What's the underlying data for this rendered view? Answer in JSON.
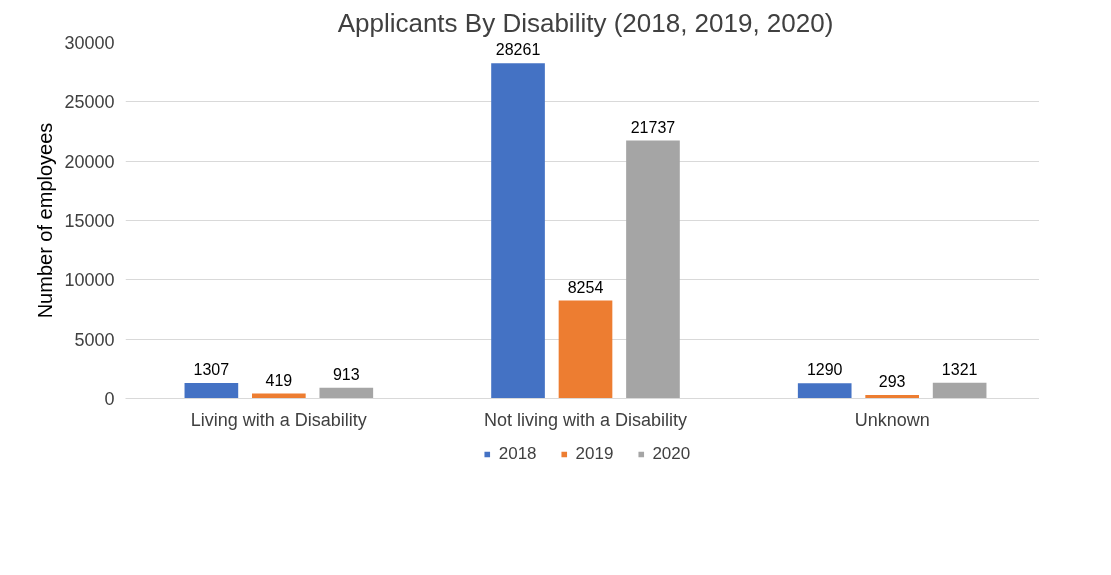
{
  "chart_data": {
    "type": "bar",
    "title": "Applicants By Disability (2018, 2019, 2020)",
    "ylabel": "Number of employees",
    "categories": [
      "Living with a Disability",
      "Not living with a Disability",
      "Unknown"
    ],
    "series": [
      {
        "name": "2018",
        "color": "#4472c4",
        "values": [
          1307,
          28261,
          1290
        ]
      },
      {
        "name": "2019",
        "color": "#ed7d31",
        "values": [
          419,
          8254,
          293
        ]
      },
      {
        "name": "2020",
        "color": "#a5a5a5",
        "values": [
          913,
          21737,
          1321
        ]
      }
    ],
    "ylim": [
      0,
      30000
    ],
    "yticks": [
      0,
      5000,
      10000,
      15000,
      20000,
      25000,
      30000
    ],
    "grid": "y",
    "legend": "bottom",
    "data_labels": true
  }
}
